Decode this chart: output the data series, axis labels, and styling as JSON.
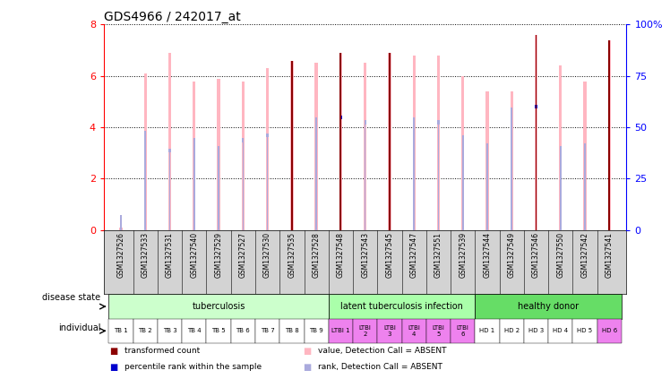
{
  "title": "GDS4966 / 242017_at",
  "samples": [
    "GSM1327526",
    "GSM1327533",
    "GSM1327531",
    "GSM1327540",
    "GSM1327529",
    "GSM1327527",
    "GSM1327530",
    "GSM1327535",
    "GSM1327528",
    "GSM1327548",
    "GSM1327543",
    "GSM1327545",
    "GSM1327547",
    "GSM1327551",
    "GSM1327539",
    "GSM1327544",
    "GSM1327549",
    "GSM1327546",
    "GSM1327550",
    "GSM1327542",
    "GSM1327541"
  ],
  "transformed_count": [
    0.1,
    0.1,
    6.9,
    0.1,
    5.9,
    5.8,
    0.1,
    6.6,
    0.1,
    6.9,
    6.5,
    6.9,
    6.8,
    6.8,
    0.1,
    0.1,
    0.1,
    7.6,
    0.1,
    5.8,
    7.4
  ],
  "value_absent": [
    0.1,
    6.1,
    6.9,
    5.8,
    5.9,
    5.8,
    6.3,
    6.6,
    6.5,
    6.9,
    6.5,
    6.9,
    6.8,
    6.8,
    6.0,
    5.4,
    5.4,
    7.6,
    6.4,
    5.8,
    7.4
  ],
  "rank_absent": [
    0.5,
    3.8,
    3.1,
    3.5,
    3.2,
    3.5,
    3.7,
    4.2,
    4.3,
    4.4,
    4.2,
    4.4,
    4.3,
    4.2,
    3.6,
    3.3,
    4.7,
    4.8,
    3.2,
    3.3,
    4.6
  ],
  "percentile_rank": [
    0.0,
    0.0,
    0.0,
    0.0,
    0.0,
    0.0,
    0.0,
    4.2,
    0.0,
    4.4,
    0.0,
    4.4,
    0.0,
    0.0,
    0.0,
    0.0,
    0.0,
    4.8,
    0.0,
    0.0,
    4.6
  ],
  "dark_red_indices": [
    7,
    9,
    11,
    17,
    20
  ],
  "has_percentile_blue": [
    false,
    false,
    false,
    false,
    false,
    false,
    false,
    true,
    false,
    true,
    false,
    true,
    false,
    false,
    false,
    false,
    false,
    true,
    false,
    false,
    true
  ],
  "ylim": [
    0,
    8
  ],
  "yticks_left": [
    0,
    2,
    4,
    6,
    8
  ],
  "yticklabels_left": [
    "0",
    "2",
    "4",
    "6",
    "8"
  ],
  "yticks_right": [
    0,
    25,
    50,
    75,
    100
  ],
  "yticklabels_right": [
    "0",
    "25",
    "50",
    "75",
    "100%"
  ],
  "color_dark_red": "#8B0000",
  "color_light_red": "#FFB6C1",
  "color_dark_blue": "#0000CD",
  "color_light_blue": "#AAAADD",
  "groups_info": [
    {
      "start": 0,
      "end": 9,
      "label": "tuberculosis",
      "color": "#CCFFCC"
    },
    {
      "start": 9,
      "end": 15,
      "label": "latent tuberculosis infection",
      "color": "#AAFFAA"
    },
    {
      "start": 15,
      "end": 21,
      "label": "healthy donor",
      "color": "#66DD66"
    }
  ],
  "individual_labels": [
    "TB 1",
    "TB 2",
    "TB 3",
    "TB 4",
    "TB 5",
    "TB 6",
    "TB 7",
    "TB 8",
    "TB 9",
    "LTBI 1",
    "LTBI\n2",
    "LTBI\n3",
    "LTBI\n4",
    "LTBI\n5",
    "LTBI\n6",
    "HD 1",
    "HD 2",
    "HD 3",
    "HD 4",
    "HD 5",
    "HD 6"
  ],
  "individual_bg": [
    "#ffffff",
    "#ffffff",
    "#ffffff",
    "#ffffff",
    "#ffffff",
    "#ffffff",
    "#ffffff",
    "#ffffff",
    "#ffffff",
    "#EE82EE",
    "#EE82EE",
    "#EE82EE",
    "#EE82EE",
    "#EE82EE",
    "#EE82EE",
    "#ffffff",
    "#ffffff",
    "#ffffff",
    "#ffffff",
    "#ffffff",
    "#EE82EE"
  ],
  "individual_tb_pink": [
    true,
    true,
    true,
    true,
    true,
    true,
    true,
    true,
    true,
    false,
    false,
    false,
    false,
    false,
    false,
    false,
    false,
    false,
    false,
    false,
    false
  ],
  "xlabel_bg": "#D3D3D3"
}
